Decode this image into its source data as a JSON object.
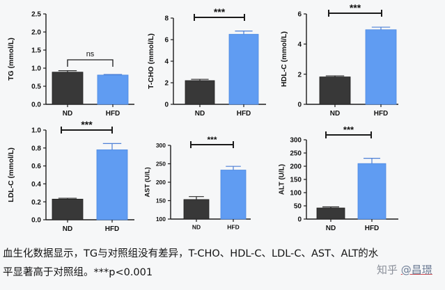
{
  "caption_line1": "血生化数据显示，TG与对照组没有差异，T-CHO、HDL-C、LDL-C、AST、ALT的水",
  "caption_line2": "平显著高于对照组。***p<0.001",
  "watermark": {
    "site": "知乎",
    "user": "@昌璟"
  },
  "colors": {
    "nd": "#383838",
    "hfd": "#609cf2",
    "axis": "#1a1a1a",
    "error": "#2a2a2a",
    "hfd_error": "#4c7fd6"
  },
  "chart_data": [
    {
      "type": "bar",
      "ylabel": "TG (mmol/L)",
      "categories": [
        "ND",
        "HFD"
      ],
      "values": [
        0.89,
        0.81
      ],
      "errors": [
        0.04,
        0.015
      ],
      "ylim": [
        0,
        2.5
      ],
      "yticks": [
        0,
        0.5,
        1.0,
        1.5,
        2.0,
        2.5
      ],
      "ytick_labels": [
        "0.0",
        "0.5",
        "1.0",
        "1.5",
        "2.0",
        "2.5"
      ],
      "significance": "ns"
    },
    {
      "type": "bar",
      "ylabel": "T-CHO (mmol/L)",
      "categories": [
        "ND",
        "HFD"
      ],
      "values": [
        2.2,
        6.5
      ],
      "errors": [
        0.12,
        0.3
      ],
      "ylim": [
        0,
        8
      ],
      "yticks": [
        0,
        2,
        4,
        6,
        8
      ],
      "ytick_labels": [
        "0",
        "2",
        "4",
        "6",
        "8"
      ],
      "significance": "***"
    },
    {
      "type": "bar",
      "ylabel": "HDL-C (mmol/L)",
      "categories": [
        "ND",
        "HFD"
      ],
      "values": [
        1.82,
        4.95
      ],
      "errors": [
        0.07,
        0.17
      ],
      "ylim": [
        0,
        6
      ],
      "yticks": [
        0,
        2,
        4,
        6
      ],
      "ytick_labels": [
        "0",
        "2",
        "4",
        "6"
      ],
      "significance": "***"
    },
    {
      "type": "bar",
      "ylabel": "LDL-C (mmol/L)",
      "categories": [
        "ND",
        "HFD"
      ],
      "values": [
        0.23,
        0.78
      ],
      "errors": [
        0.01,
        0.07
      ],
      "ylim": [
        0,
        1.0
      ],
      "yticks": [
        0,
        0.2,
        0.4,
        0.6,
        0.8,
        1.0
      ],
      "ytick_labels": [
        "0.0",
        "0.2",
        "0.4",
        "0.6",
        "0.8",
        "1.0"
      ],
      "significance": "***"
    },
    {
      "type": "bar",
      "ylabel": "AST (U/L)",
      "categories": [
        "ND",
        "HFD"
      ],
      "values": [
        153,
        233
      ],
      "errors": [
        8,
        10
      ],
      "ylim": [
        100,
        300
      ],
      "yticks": [
        100,
        150,
        200,
        250,
        300
      ],
      "ytick_labels": [
        "100",
        "150",
        "200",
        "250",
        "300"
      ],
      "significance": "***"
    },
    {
      "type": "bar",
      "ylabel": "ALT (U/L)",
      "categories": [
        "ND",
        "HFD"
      ],
      "values": [
        42,
        210
      ],
      "errors": [
        4,
        20
      ],
      "ylim": [
        0,
        300
      ],
      "yticks": [
        0,
        50,
        100,
        150,
        200,
        250,
        300
      ],
      "ytick_labels": [
        "0",
        "50",
        "100",
        "150",
        "200",
        "250",
        "300"
      ],
      "significance": "***"
    }
  ]
}
